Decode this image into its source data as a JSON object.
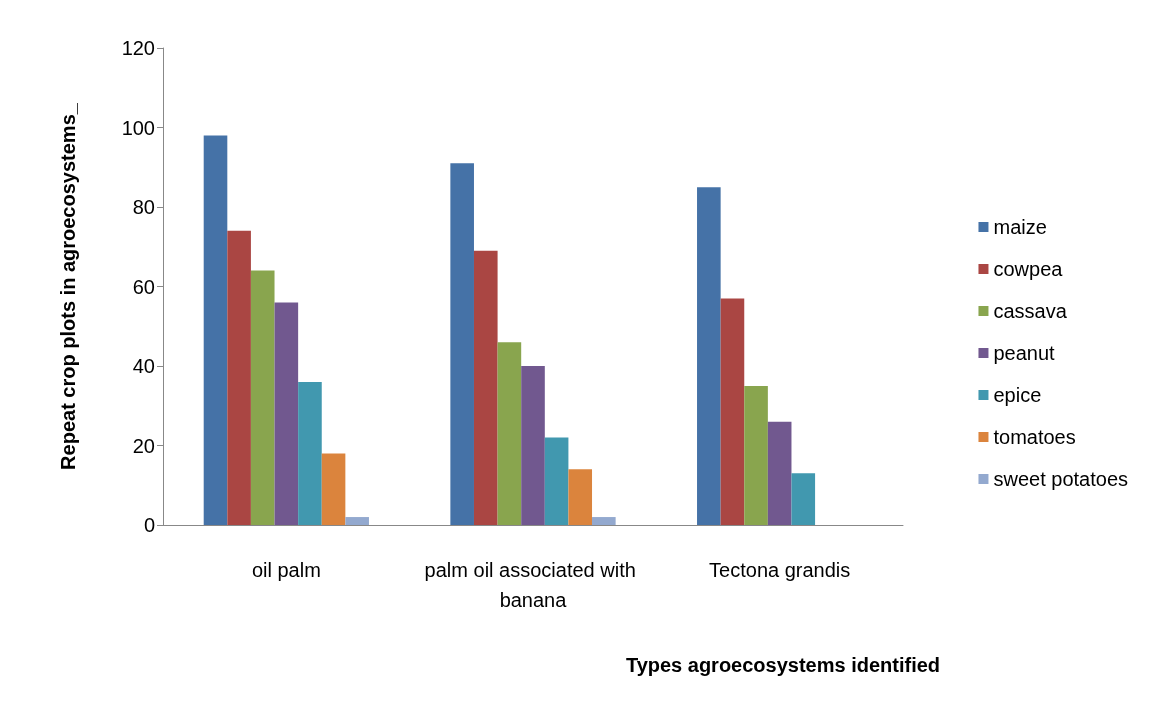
{
  "chart_data": {
    "type": "bar",
    "xlabel": "Types agroecosystems identified",
    "ylabel": "Repeat crop plots in agroecosystems_",
    "categories": [
      "oil palm",
      "palm oil associated with banana",
      "Tectona grandis"
    ],
    "series": [
      {
        "name": "maize",
        "color": "#4572a7",
        "values": [
          98,
          91,
          85
        ]
      },
      {
        "name": "cowpea",
        "color": "#aa4643",
        "values": [
          74,
          69,
          57
        ]
      },
      {
        "name": "cassava",
        "color": "#89a54e",
        "values": [
          64,
          46,
          35
        ]
      },
      {
        "name": "peanut",
        "color": "#71588f",
        "values": [
          56,
          40,
          26
        ]
      },
      {
        "name": "epice",
        "color": "#4198af",
        "values": [
          36,
          22,
          13
        ]
      },
      {
        "name": "tomatoes",
        "color": "#db843d",
        "values": [
          18,
          14,
          null
        ]
      },
      {
        "name": "sweet potatoes",
        "color": "#93a9cf",
        "values": [
          2,
          2,
          null
        ]
      }
    ],
    "ylim": [
      0,
      120
    ],
    "yticks": [
      0,
      20,
      40,
      60,
      80,
      100,
      120
    ],
    "grid": false,
    "legend": "right"
  }
}
